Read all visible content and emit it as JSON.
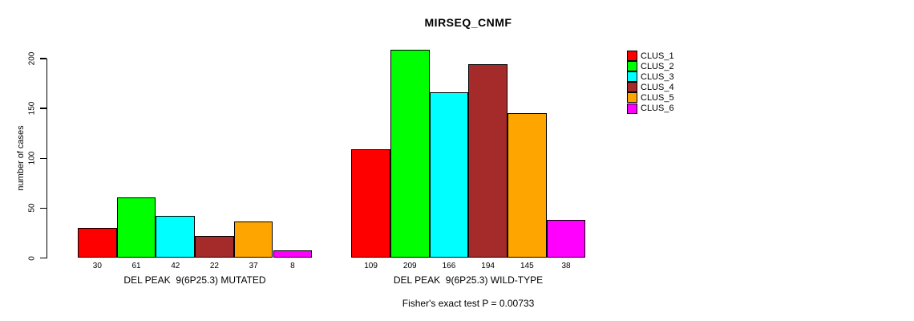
{
  "chart_data": {
    "type": "bar",
    "title": "MIRSEQ_CNMF",
    "ylabel": "number of cases",
    "xlabel": "",
    "ylim": [
      0,
      200
    ],
    "yticks": [
      0,
      50,
      100,
      150,
      200
    ],
    "grid": false,
    "legend_position": "right",
    "categories": [
      "DEL PEAK  9(6P25.3) MUTATED",
      "DEL PEAK  9(6P25.3) WILD-TYPE"
    ],
    "series": [
      {
        "name": "CLUS_1",
        "color": "#ff0000",
        "values": [
          30,
          109
        ]
      },
      {
        "name": "CLUS_2",
        "color": "#00ff00",
        "values": [
          61,
          209
        ]
      },
      {
        "name": "CLUS_3",
        "color": "#00ffff",
        "values": [
          42,
          166
        ]
      },
      {
        "name": "CLUS_4",
        "color": "#a52a2a",
        "values": [
          22,
          194
        ]
      },
      {
        "name": "CLUS_5",
        "color": "#ffa500",
        "values": [
          37,
          145
        ]
      },
      {
        "name": "CLUS_6",
        "color": "#ff00ff",
        "values": [
          8,
          38
        ]
      }
    ],
    "bar_value_labels": [
      [
        30,
        61,
        42,
        22,
        37,
        8
      ],
      [
        109,
        209,
        166,
        194,
        145,
        38
      ]
    ],
    "annotation": "Fisher's exact test P = 0.00733"
  }
}
